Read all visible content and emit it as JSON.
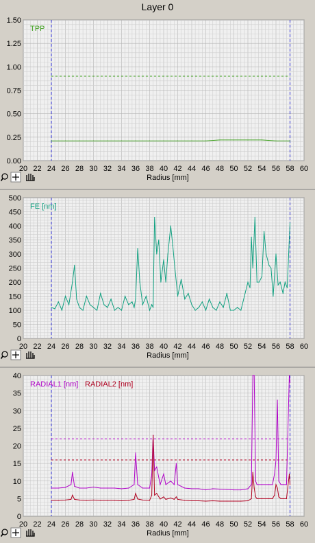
{
  "window": {
    "title": "Layer 0"
  },
  "toolbar": {
    "zoom_icon": "zoom-magnifier-icon",
    "crosshair_icon": "crosshair-icon",
    "pan_icon": "hand-pan-icon"
  },
  "colors": {
    "plot_bg": "#f0f0f0",
    "grid_minor": "#cfcfcf",
    "grid_major": "#b4b4b4",
    "marker": "#2a2ad0",
    "tpp": "#3f9f1f",
    "fe": "#10a080",
    "radial1": "#b000c8",
    "radial2": "#b00020"
  },
  "chart_data": [
    {
      "type": "line",
      "title": "",
      "xlabel": "Radius [mm]",
      "ylabel": "",
      "xlim": [
        20,
        60
      ],
      "ylim": [
        0,
        1.5
      ],
      "xticks": [
        "20",
        "22",
        "24",
        "26",
        "28",
        "30",
        "32",
        "34",
        "36",
        "38",
        "40",
        "42",
        "44",
        "46",
        "48",
        "50",
        "52",
        "54",
        "56",
        "58",
        "60"
      ],
      "yticks": [
        "1.50",
        "1.25",
        "1.00",
        "0.75",
        "0.50",
        "0.25",
        "0.00"
      ],
      "markers_x": [
        24,
        58
      ],
      "thresholds": [
        {
          "series": "TPP",
          "value": 0.9
        }
      ],
      "series": [
        {
          "name": "TPP",
          "x": [
            24,
            26,
            28,
            30,
            32,
            34,
            36,
            38,
            40,
            42,
            44,
            46,
            48,
            50,
            52,
            54,
            56,
            58
          ],
          "values": [
            0.21,
            0.21,
            0.21,
            0.21,
            0.21,
            0.21,
            0.21,
            0.21,
            0.21,
            0.21,
            0.21,
            0.21,
            0.22,
            0.22,
            0.22,
            0.22,
            0.21,
            0.21
          ]
        }
      ]
    },
    {
      "type": "line",
      "title": "",
      "xlabel": "Radius [mm]",
      "ylabel": "",
      "xlim": [
        20,
        60
      ],
      "ylim": [
        0,
        500
      ],
      "xticks": [
        "20",
        "22",
        "24",
        "26",
        "28",
        "30",
        "32",
        "34",
        "36",
        "38",
        "40",
        "42",
        "44",
        "46",
        "48",
        "50",
        "52",
        "54",
        "56",
        "58",
        "60"
      ],
      "yticks": [
        "500",
        "450",
        "400",
        "350",
        "300",
        "250",
        "200",
        "150",
        "100",
        "50",
        "0"
      ],
      "markers_x": [
        24,
        58
      ],
      "series": [
        {
          "name": "FE [nm]",
          "x": [
            24,
            24.5,
            25,
            25.5,
            26,
            26.5,
            27,
            27.3,
            27.6,
            28,
            28.5,
            29,
            29.5,
            30,
            30.5,
            31,
            31.5,
            32,
            32.5,
            33,
            33.5,
            34,
            34.5,
            35,
            35.5,
            35.8,
            36,
            36.3,
            36.6,
            37,
            37.5,
            38,
            38.3,
            38.5,
            38.7,
            39,
            39.3,
            39.6,
            40,
            40.3,
            40.6,
            41,
            41.3,
            41.6,
            42,
            42.5,
            43,
            43.5,
            44,
            44.5,
            45,
            45.5,
            46,
            46.5,
            47,
            47.5,
            48,
            48.5,
            49,
            49.5,
            50,
            50.5,
            51,
            51.5,
            52,
            52.3,
            52.5,
            52.7,
            53,
            53.3,
            53.6,
            54,
            54.3,
            54.6,
            55,
            55.3,
            55.6,
            56,
            56.3,
            56.6,
            57,
            57.3,
            57.6,
            58
          ],
          "values": [
            110,
            105,
            130,
            100,
            150,
            120,
            200,
            260,
            140,
            110,
            100,
            150,
            120,
            110,
            100,
            160,
            120,
            110,
            140,
            100,
            110,
            100,
            150,
            120,
            130,
            110,
            140,
            320,
            200,
            120,
            150,
            100,
            120,
            110,
            430,
            300,
            350,
            200,
            280,
            200,
            300,
            400,
            330,
            250,
            150,
            210,
            140,
            160,
            120,
            100,
            110,
            130,
            100,
            140,
            110,
            100,
            130,
            110,
            160,
            100,
            100,
            110,
            100,
            150,
            200,
            180,
            360,
            250,
            430,
            200,
            200,
            220,
            380,
            300,
            260,
            250,
            150,
            300,
            190,
            200,
            160,
            200,
            180,
            410
          ]
        }
      ]
    },
    {
      "type": "line",
      "title": "",
      "xlabel": "Radius [mm]",
      "ylabel": "",
      "xlim": [
        20,
        60
      ],
      "ylim": [
        0,
        40
      ],
      "xticks": [
        "20",
        "22",
        "24",
        "26",
        "28",
        "30",
        "32",
        "34",
        "36",
        "38",
        "40",
        "42",
        "44",
        "46",
        "48",
        "50",
        "52",
        "54",
        "56",
        "58",
        "60"
      ],
      "yticks": [
        "40",
        "35",
        "30",
        "25",
        "20",
        "15",
        "10",
        "5",
        "0"
      ],
      "markers_x": [
        24,
        58
      ],
      "thresholds": [
        {
          "series": "RADIAL1 [nm]",
          "value": 22
        },
        {
          "series": "RADIAL2 [nm]",
          "value": 16
        }
      ],
      "series": [
        {
          "name": "RADIAL1 [nm]",
          "x": [
            24,
            25,
            26,
            26.8,
            27,
            27.3,
            28,
            29,
            30,
            31,
            32,
            33,
            34,
            35,
            35.8,
            36,
            36.3,
            37,
            38,
            38.3,
            38.5,
            38.7,
            39,
            39.5,
            40,
            40.3,
            41,
            41.5,
            41.8,
            42,
            43,
            44,
            45,
            46,
            47,
            48,
            49,
            50,
            51,
            52,
            52.5,
            52.7,
            52.9,
            53.1,
            53.3,
            54,
            55,
            55.5,
            55.8,
            56,
            56.2,
            56.4,
            56.7,
            57,
            57.5,
            57.9,
            58
          ],
          "values": [
            8,
            8,
            8.2,
            9,
            12.5,
            8.5,
            8,
            8,
            8.3,
            8,
            8,
            8,
            7.8,
            8,
            9,
            18,
            9,
            8,
            8,
            12,
            23,
            13,
            14,
            9,
            12,
            9,
            10,
            9,
            15,
            9,
            8,
            7.8,
            7.8,
            7.5,
            7.8,
            7.7,
            7.6,
            7.5,
            7.5,
            7.8,
            9,
            40,
            40,
            10,
            9,
            9,
            9,
            9,
            12,
            16,
            33,
            10,
            9,
            9,
            9,
            40,
            38
          ]
        },
        {
          "name": "RADIAL2 [nm]",
          "x": [
            24,
            25,
            26,
            26.8,
            27,
            27.3,
            28,
            29,
            30,
            31,
            32,
            33,
            34,
            35,
            35.8,
            36,
            36.3,
            37,
            38,
            38.3,
            38.5,
            38.7,
            39,
            39.5,
            40,
            40.3,
            41,
            41.5,
            41.8,
            42,
            43,
            44,
            45,
            46,
            47,
            48,
            49,
            50,
            51,
            52,
            52.5,
            52.7,
            52.9,
            53.1,
            53.3,
            54,
            55,
            55.5,
            55.8,
            56,
            56.2,
            56.4,
            56.7,
            57,
            57.5,
            57.9,
            58
          ],
          "values": [
            4.5,
            4.5,
            4.6,
            4.8,
            6,
            4.8,
            4.6,
            4.5,
            4.6,
            4.5,
            4.5,
            4.5,
            4.4,
            4.5,
            4.8,
            6.5,
            4.9,
            4.6,
            4.5,
            6,
            23,
            6,
            6.5,
            4.9,
            5.5,
            4.8,
            5.2,
            4.8,
            5.5,
            4.8,
            4.5,
            4.4,
            4.4,
            4.3,
            4.4,
            4.3,
            4.3,
            4.3,
            4.3,
            4.4,
            5,
            12.5,
            8,
            5.5,
            5,
            5,
            5,
            5,
            6,
            9,
            8,
            5.5,
            5,
            5,
            5,
            12,
            9
          ]
        }
      ]
    }
  ]
}
